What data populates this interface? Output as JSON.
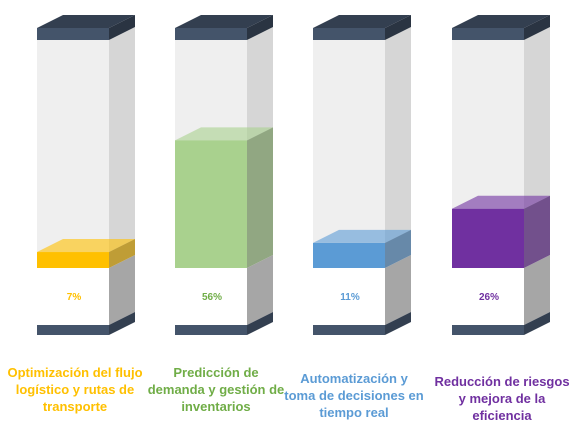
{
  "chart_data": {
    "type": "bar",
    "categories": [
      "Optimización del flujo logístico y rutas de transporte",
      "Predicción de demanda y gestión de inventarios",
      "Automatización y toma de decisiones en tiempo real",
      "Reducción de riesgos y mejora de la eficiencia"
    ],
    "series": [
      {
        "values": [
          7,
          56,
          11,
          26
        ]
      }
    ],
    "data_labels": [
      "7%",
      "56%",
      "11%",
      "26%"
    ],
    "colors": [
      "#ffc000",
      "#a9d18e",
      "#5b9bd5",
      "#7030a0"
    ],
    "label_colors": [
      "#ffc000",
      "#70ad47",
      "#5b9bd5",
      "#7030a0"
    ],
    "ylim": [
      0,
      100
    ],
    "title": "",
    "xlabel": "",
    "ylabel": ""
  }
}
